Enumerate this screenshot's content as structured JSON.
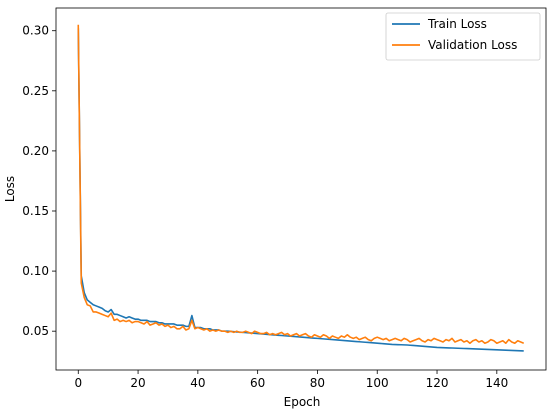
{
  "chart_data": {
    "type": "line",
    "title": "",
    "xlabel": "Epoch",
    "ylabel": "Loss",
    "xlim": [
      -7.45,
      156.45
    ],
    "ylim": [
      0.0177,
      0.3189
    ],
    "xticks": [
      0,
      20,
      40,
      60,
      80,
      100,
      120,
      140
    ],
    "yticks": [
      0.05,
      0.1,
      0.15,
      0.2,
      0.25,
      0.3
    ],
    "xtick_labels": [
      "0",
      "20",
      "40",
      "60",
      "80",
      "100",
      "120",
      "140"
    ],
    "ytick_labels": [
      "0.05",
      "0.10",
      "0.15",
      "0.20",
      "0.25",
      "0.30"
    ],
    "grid": false,
    "legend": "top-right",
    "x": [
      0,
      1,
      2,
      3,
      4,
      5,
      6,
      7,
      8,
      9,
      10,
      11,
      12,
      13,
      14,
      15,
      16,
      17,
      18,
      19,
      20,
      21,
      22,
      23,
      24,
      25,
      26,
      27,
      28,
      29,
      30,
      31,
      32,
      33,
      34,
      35,
      36,
      37,
      38,
      39,
      40,
      41,
      42,
      43,
      44,
      45,
      46,
      47,
      48,
      49,
      50,
      51,
      52,
      53,
      54,
      55,
      56,
      57,
      58,
      59,
      60,
      61,
      62,
      63,
      64,
      65,
      66,
      67,
      68,
      69,
      70,
      71,
      72,
      73,
      74,
      75,
      76,
      77,
      78,
      79,
      80,
      81,
      82,
      83,
      84,
      85,
      86,
      87,
      88,
      89,
      90,
      91,
      92,
      93,
      94,
      95,
      96,
      97,
      98,
      99,
      100,
      101,
      102,
      103,
      104,
      105,
      106,
      107,
      108,
      109,
      110,
      111,
      112,
      113,
      114,
      115,
      116,
      117,
      118,
      119,
      120,
      121,
      122,
      123,
      124,
      125,
      126,
      127,
      128,
      129,
      130,
      131,
      132,
      133,
      134,
      135,
      136,
      137,
      138,
      139,
      140,
      141,
      142,
      143,
      144,
      145,
      146,
      147,
      148,
      149
    ],
    "series": [
      {
        "name": "Train Loss",
        "color": "#1f77b4",
        "values": [
          0.302,
          0.096,
          0.082,
          0.076,
          0.074,
          0.072,
          0.071,
          0.07,
          0.069,
          0.067,
          0.066,
          0.068,
          0.064,
          0.064,
          0.063,
          0.062,
          0.061,
          0.062,
          0.061,
          0.06,
          0.06,
          0.059,
          0.059,
          0.059,
          0.058,
          0.058,
          0.058,
          0.057,
          0.057,
          0.056,
          0.056,
          0.056,
          0.056,
          0.055,
          0.055,
          0.055,
          0.054,
          0.054,
          0.063,
          0.053,
          0.053,
          0.053,
          0.052,
          0.052,
          0.052,
          0.051,
          0.051,
          0.051,
          0.05,
          0.05,
          0.05,
          0.0498,
          0.0496,
          0.0494,
          0.0492,
          0.049,
          0.0488,
          0.0486,
          0.0484,
          0.0482,
          0.048,
          0.0478,
          0.0476,
          0.0474,
          0.0472,
          0.047,
          0.0468,
          0.0466,
          0.0464,
          0.0462,
          0.046,
          0.0458,
          0.0456,
          0.0454,
          0.0452,
          0.045,
          0.0448,
          0.0446,
          0.0444,
          0.0442,
          0.044,
          0.0438,
          0.0436,
          0.0434,
          0.0432,
          0.043,
          0.0428,
          0.0426,
          0.0424,
          0.0422,
          0.042,
          0.0418,
          0.0416,
          0.0414,
          0.0412,
          0.041,
          0.0408,
          0.0406,
          0.0404,
          0.0402,
          0.04,
          0.0398,
          0.0396,
          0.0394,
          0.0392,
          0.039,
          0.0389,
          0.0388,
          0.0387,
          0.0386,
          0.0385,
          0.0383,
          0.0381,
          0.0379,
          0.0377,
          0.0375,
          0.0373,
          0.0371,
          0.0369,
          0.0367,
          0.0365,
          0.0364,
          0.0363,
          0.0362,
          0.0361,
          0.036,
          0.0359,
          0.0358,
          0.0357,
          0.0356,
          0.0355,
          0.0354,
          0.0353,
          0.0352,
          0.0351,
          0.035,
          0.0349,
          0.0348,
          0.0347,
          0.0346,
          0.0345,
          0.0344,
          0.0343,
          0.0342,
          0.0341,
          0.034,
          0.0339,
          0.0338,
          0.0337,
          0.0336
        ]
      },
      {
        "name": "Validation Loss",
        "color": "#ff7f0e",
        "values": [
          0.305,
          0.09,
          0.078,
          0.072,
          0.071,
          0.066,
          0.066,
          0.065,
          0.064,
          0.063,
          0.062,
          0.065,
          0.059,
          0.06,
          0.058,
          0.059,
          0.058,
          0.059,
          0.057,
          0.058,
          0.058,
          0.057,
          0.056,
          0.058,
          0.055,
          0.056,
          0.057,
          0.055,
          0.056,
          0.054,
          0.055,
          0.053,
          0.054,
          0.052,
          0.052,
          0.054,
          0.051,
          0.052,
          0.059,
          0.052,
          0.053,
          0.052,
          0.051,
          0.052,
          0.05,
          0.051,
          0.05,
          0.051,
          0.05,
          0.05,
          0.049,
          0.05,
          0.049,
          0.05,
          0.049,
          0.049,
          0.05,
          0.049,
          0.048,
          0.05,
          0.049,
          0.048,
          0.048,
          0.049,
          0.047,
          0.048,
          0.047,
          0.048,
          0.049,
          0.047,
          0.048,
          0.046,
          0.047,
          0.048,
          0.046,
          0.047,
          0.048,
          0.046,
          0.045,
          0.047,
          0.046,
          0.045,
          0.047,
          0.046,
          0.044,
          0.046,
          0.045,
          0.044,
          0.046,
          0.045,
          0.047,
          0.045,
          0.044,
          0.045,
          0.043,
          0.044,
          0.045,
          0.043,
          0.042,
          0.044,
          0.045,
          0.044,
          0.043,
          0.044,
          0.042,
          0.043,
          0.044,
          0.043,
          0.042,
          0.044,
          0.043,
          0.041,
          0.042,
          0.043,
          0.044,
          0.042,
          0.041,
          0.043,
          0.042,
          0.044,
          0.043,
          0.042,
          0.041,
          0.043,
          0.042,
          0.044,
          0.041,
          0.042,
          0.043,
          0.041,
          0.042,
          0.04,
          0.042,
          0.043,
          0.041,
          0.042,
          0.04,
          0.041,
          0.043,
          0.042,
          0.04,
          0.041,
          0.042,
          0.04,
          0.043,
          0.041,
          0.04,
          0.042,
          0.041,
          0.04
        ]
      }
    ]
  }
}
